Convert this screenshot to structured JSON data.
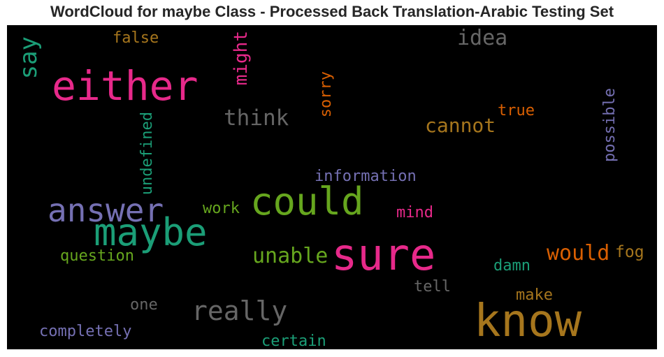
{
  "title": "WordCloud for maybe Class - Processed Back Translation-Arabic Testing Set",
  "words": [
    {
      "text": "either",
      "color": "#e7298a"
    },
    {
      "text": "say",
      "color": "#1b9e77"
    },
    {
      "text": "false",
      "color": "#a6761d"
    },
    {
      "text": "might",
      "color": "#e7298a"
    },
    {
      "text": "idea",
      "color": "#666666"
    },
    {
      "text": "think",
      "color": "#666666"
    },
    {
      "text": "sorry",
      "color": "#d95f02"
    },
    {
      "text": "true",
      "color": "#d95f02"
    },
    {
      "text": "cannot",
      "color": "#a6761d"
    },
    {
      "text": "possible",
      "color": "#7570b3"
    },
    {
      "text": "undefined",
      "color": "#1b9e77"
    },
    {
      "text": "information",
      "color": "#7570b3"
    },
    {
      "text": "answer",
      "color": "#7570b3"
    },
    {
      "text": "could",
      "color": "#66a61e"
    },
    {
      "text": "work",
      "color": "#66a61e"
    },
    {
      "text": "mind",
      "color": "#e7298a"
    },
    {
      "text": "maybe",
      "color": "#1b9e77"
    },
    {
      "text": "sure",
      "color": "#e7298a"
    },
    {
      "text": "would",
      "color": "#d95f02"
    },
    {
      "text": "fog",
      "color": "#a6761d"
    },
    {
      "text": "question",
      "color": "#66a61e"
    },
    {
      "text": "unable",
      "color": "#66a61e"
    },
    {
      "text": "damn",
      "color": "#1b9e77"
    },
    {
      "text": "tell",
      "color": "#666666"
    },
    {
      "text": "make",
      "color": "#a6761d"
    },
    {
      "text": "one",
      "color": "#666666"
    },
    {
      "text": "really",
      "color": "#666666"
    },
    {
      "text": "know",
      "color": "#a6761d"
    },
    {
      "text": "completely",
      "color": "#7570b3"
    },
    {
      "text": "certain",
      "color": "#1b9e77"
    }
  ]
}
